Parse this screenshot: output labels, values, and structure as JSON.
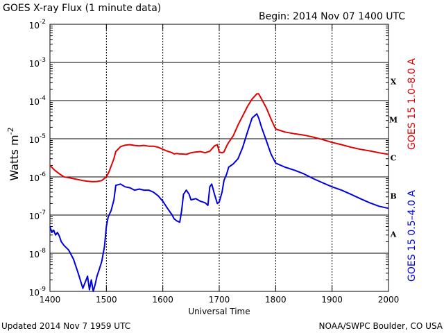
{
  "header": {
    "title": "GOES X-ray Flux (1 minute data)",
    "begin": "Begin: 2014 Nov 07 1400 UTC"
  },
  "footer": {
    "updated": "Updated 2014 Nov  7 1959 UTC",
    "credit": "NOAA/SWPC Boulder, CO USA"
  },
  "colors": {
    "long_channel": "#e00000",
    "short_channel": "#0000e0",
    "grid": "#000000"
  },
  "chart_data": {
    "type": "line",
    "title": "GOES X-ray Flux (1 minute data)",
    "xlabel": "Universal Time",
    "ylabel": "Watts m",
    "ylabel_sup": "-2",
    "y_scale": "log",
    "xlim": [
      "1400",
      "2000"
    ],
    "ylim": [
      1e-09,
      0.01
    ],
    "x_ticks": [
      "1400",
      "1500",
      "1600",
      "1700",
      "1800",
      "1900",
      "2000"
    ],
    "y_ticks": [
      {
        "base": "10",
        "exp": "-9",
        "value": 1e-09
      },
      {
        "base": "10",
        "exp": "-8",
        "value": 1e-08
      },
      {
        "base": "10",
        "exp": "-7",
        "value": 1e-07
      },
      {
        "base": "10",
        "exp": "-6",
        "value": 1e-06
      },
      {
        "base": "10",
        "exp": "-5",
        "value": 1e-05
      },
      {
        "base": "10",
        "exp": "-4",
        "value": 0.0001
      },
      {
        "base": "10",
        "exp": "-3",
        "value": 0.001
      },
      {
        "base": "10",
        "exp": "-2",
        "value": 0.01
      }
    ],
    "flare_classes": [
      {
        "label": "A",
        "value": 1e-08
      },
      {
        "label": "B",
        "value": 1e-07
      },
      {
        "label": "C",
        "value": 1e-06
      },
      {
        "label": "M",
        "value": 1e-05
      },
      {
        "label": "X",
        "value": 0.0001
      }
    ],
    "grid": true,
    "legend_placement": "right (rotated)",
    "series": [
      {
        "name": "GOES 15 1.0–8.0 A",
        "color": "#e00000",
        "x": [
          "1400",
          "1405",
          "1410",
          "1415",
          "1420",
          "1425",
          "1430",
          "1435",
          "1440",
          "1445",
          "1450",
          "1455",
          "1500",
          "1503",
          "1505",
          "1508",
          "1510",
          "1515",
          "1520",
          "1525",
          "1530",
          "1535",
          "1540",
          "1545",
          "1550",
          "1555",
          "1600",
          "1605",
          "1610",
          "1612",
          "1615",
          "1618",
          "1620",
          "1625",
          "1630",
          "1635",
          "1640",
          "1645",
          "1650",
          "1655",
          "1658",
          "1700",
          "1703",
          "1705",
          "1708",
          "1710",
          "1715",
          "1720",
          "1725",
          "1730",
          "1735",
          "1740",
          "1742",
          "1745",
          "1750",
          "1755",
          "1800",
          "1810",
          "1820",
          "1830",
          "1840",
          "1850",
          "1900",
          "1910",
          "1920",
          "1930",
          "1940",
          "1950",
          "2000"
        ],
        "y": [
          2e-06,
          1.5e-06,
          1.2e-06,
          1e-06,
          9.5e-07,
          9e-07,
          8.5e-07,
          8e-07,
          7.7e-07,
          7.5e-07,
          7.6e-07,
          8e-07,
          1e-06,
          1.4e-06,
          1.9e-06,
          3e-06,
          4.6e-06,
          6.2e-06,
          6.8e-06,
          7e-06,
          6.7e-06,
          6.5e-06,
          6.7e-06,
          6.4e-06,
          6.4e-06,
          6e-06,
          5.3e-06,
          4.7e-06,
          4.3e-06,
          4e-06,
          4.1e-06,
          4e-06,
          4e-06,
          3.9e-06,
          4.3e-06,
          4.5e-06,
          4.6e-06,
          4.3e-06,
          4.7e-06,
          6.5e-06,
          7e-06,
          4.5e-06,
          4.3e-06,
          4.5e-06,
          6.5e-06,
          8e-06,
          1.2e-05,
          2.3e-05,
          4e-05,
          7e-05,
          0.00011,
          0.00015,
          0.00015,
          0.00011,
          6.5e-05,
          3.3e-05,
          1.8e-05,
          1.5e-05,
          1.35e-05,
          1.25e-05,
          1.1e-05,
          9.5e-06,
          8e-06,
          7e-06,
          6e-06,
          5.3e-06,
          4.8e-06,
          4.3e-06,
          3.9e-06
        ]
      },
      {
        "name": "GOES 15 0.5–4.0 A",
        "color": "#0000e0",
        "x": [
          "1400",
          "1402",
          "1404",
          "1406",
          "1408",
          "1410",
          "1412",
          "1415",
          "1420",
          "1425",
          "1430",
          "1435",
          "1440",
          "1442",
          "1444",
          "1446",
          "1448",
          "1450",
          "1452",
          "1455",
          "1458",
          "1500",
          "1502",
          "1505",
          "1508",
          "1510",
          "1515",
          "1520",
          "1525",
          "1530",
          "1535",
          "1540",
          "1545",
          "1550",
          "1555",
          "1600",
          "1605",
          "1610",
          "1612",
          "1615",
          "1618",
          "1620",
          "1622",
          "1625",
          "1628",
          "1630",
          "1635",
          "1640",
          "1645",
          "1648",
          "1650",
          "1652",
          "1655",
          "1658",
          "1700",
          "1703",
          "1705",
          "1708",
          "1710",
          "1715",
          "1720",
          "1725",
          "1730",
          "1735",
          "1740",
          "1742",
          "1745",
          "1750",
          "1755",
          "1800",
          "1810",
          "1820",
          "1830",
          "1840",
          "1850",
          "1900",
          "1910",
          "1920",
          "1930",
          "1940",
          "1950",
          "2000"
        ],
        "y": [
          5e-08,
          3.5e-08,
          4e-08,
          3e-08,
          3.5e-08,
          2.8e-08,
          2e-08,
          1.6e-08,
          1.2e-08,
          7e-09,
          3e-09,
          1.2e-09,
          2.5e-09,
          1.1e-09,
          2e-09,
          1e-09,
          1.5e-09,
          2.5e-09,
          3.5e-09,
          6e-09,
          1.5e-08,
          5e-08,
          9e-08,
          1.3e-07,
          2.5e-07,
          6e-07,
          6.5e-07,
          5.5e-07,
          5.2e-07,
          4.5e-07,
          4.8e-07,
          4.5e-07,
          4.5e-07,
          4e-07,
          3.2e-07,
          2.3e-07,
          1.5e-07,
          1e-07,
          8e-08,
          7e-08,
          6.5e-08,
          1.3e-07,
          3.5e-07,
          4.5e-07,
          3.5e-07,
          2.5e-07,
          2.7e-07,
          2.3e-07,
          2.1e-07,
          1.8e-07,
          5.5e-07,
          6.5e-07,
          3.5e-07,
          2e-07,
          2.2e-07,
          4e-07,
          8e-07,
          1.2e-06,
          1.8e-06,
          2.2e-06,
          3e-06,
          6e-06,
          1.5e-05,
          3.5e-05,
          4.5e-05,
          3.5e-05,
          2e-05,
          9e-06,
          4e-06,
          2.3e-06,
          1.8e-06,
          1.5e-06,
          1.2e-06,
          9e-07,
          7e-07,
          5.5e-07,
          4.5e-07,
          3.5e-07,
          2.7e-07,
          2.1e-07,
          1.7e-07,
          1.5e-07
        ]
      }
    ]
  }
}
